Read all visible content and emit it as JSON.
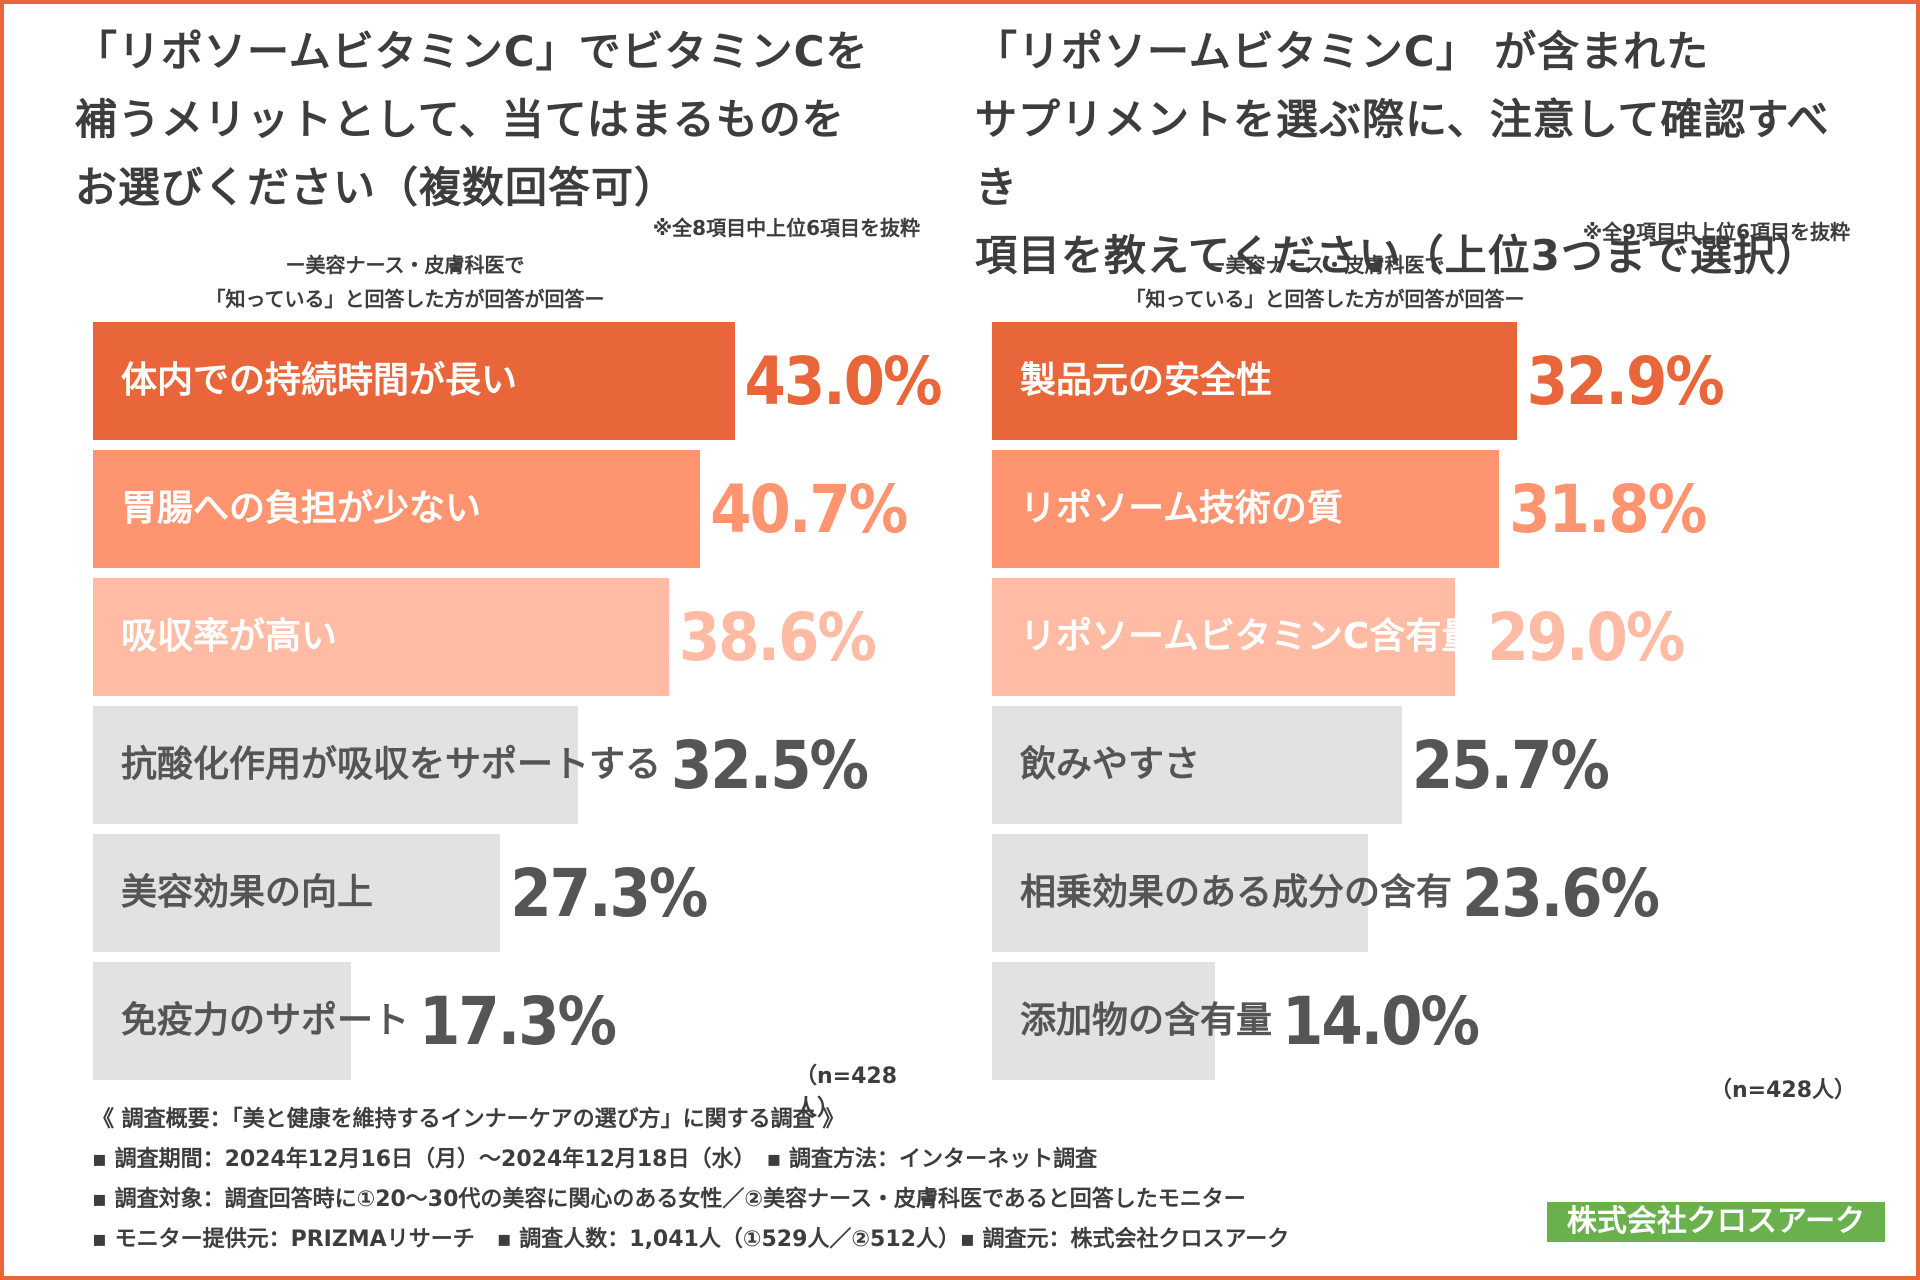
{
  "colors": {
    "rank1": "#e8663a",
    "rank2": "#ff9470",
    "rank3": "#ffbba4",
    "rest": "#e2e2e2",
    "label_dark": "#555555",
    "value_dark": "#555555",
    "border": "#e8663a",
    "company_bg": "#6ab04c"
  },
  "left": {
    "title": "「リポソームビタミンC」でビタミンCを\n補うメリットとして、当てはまるものを\nお選びください（複数回答可）",
    "note": "※全8項目中上位6項目を抜粋",
    "respondents": "ー美容ナース・皮膚科医で\n「知っている」と回答した方が回答が回答ー",
    "n": "（n=428人）"
  },
  "right": {
    "title": "「リポソームビタミンC」 が含まれた\nサプリメントを選ぶ際に、注意して確認すべき\n項目を教えてください（上位3つまで選択）",
    "note": "※全9項目中上位6項目を抜粋",
    "respondents": "ー美容ナース・皮膚科医で\n「知っている」と回答した方が回答が回答ー",
    "n": "（n=428人）"
  },
  "chart_data": [
    {
      "type": "bar",
      "orientation": "horizontal",
      "title": "「リポソームビタミンC」でビタミンCを補うメリットとして、当てはまるものをお選びください（複数回答可）",
      "categories": [
        "体内での持続時間が長い",
        "胃腸への負担が少ない",
        "吸収率が高い",
        "抗酸化作用が吸収をサポートする",
        "美容効果の向上",
        "免疫力のサポート"
      ],
      "values": [
        43.0,
        40.7,
        38.6,
        32.5,
        27.3,
        17.3
      ],
      "value_labels": [
        "43.0%",
        "40.7%",
        "38.6%",
        "32.5%",
        "27.3%",
        "17.3%"
      ],
      "unit": "%",
      "xlim": [
        0,
        70
      ]
    },
    {
      "type": "bar",
      "orientation": "horizontal",
      "title": "「リポソームビタミンC」が含まれたサプリメントを選ぶ際に、注意して確認すべき項目を教えてください（上位3つまで選択）",
      "categories": [
        "製品元の安全性",
        "リポソーム技術の質",
        "リポソームビタミンC含有量",
        "飲みやすさ",
        "相乗効果のある成分の含有",
        "添加物の含有量"
      ],
      "values": [
        32.9,
        31.8,
        29.0,
        25.7,
        23.6,
        14.0
      ],
      "value_labels": [
        "32.9%",
        "31.8%",
        "29.0%",
        "25.7%",
        "23.6%",
        "14.0%"
      ],
      "unit": "%",
      "xlim": [
        0,
        64
      ]
    }
  ],
  "survey": {
    "heading": "《 調査概要：「美と健康を維持するインナーケアの選び方」に関する調査 》",
    "period": "▪ 調査期間：2024年12月16日（月）〜2024年12月18日（水）　▪ 調査方法：インターネット調査",
    "target": "▪ 調査対象：調査回答時に①20〜30代の美容に関心のある女性／②美容ナース・皮膚科医であると回答したモニター",
    "provider": "▪ モニター提供元：PRIZMAリサーチ　▪ 調査人数：1,041人（①529人／②512人）▪ 調査元：株式会社クロスアーク"
  },
  "company": "株式会社クロスアーク"
}
